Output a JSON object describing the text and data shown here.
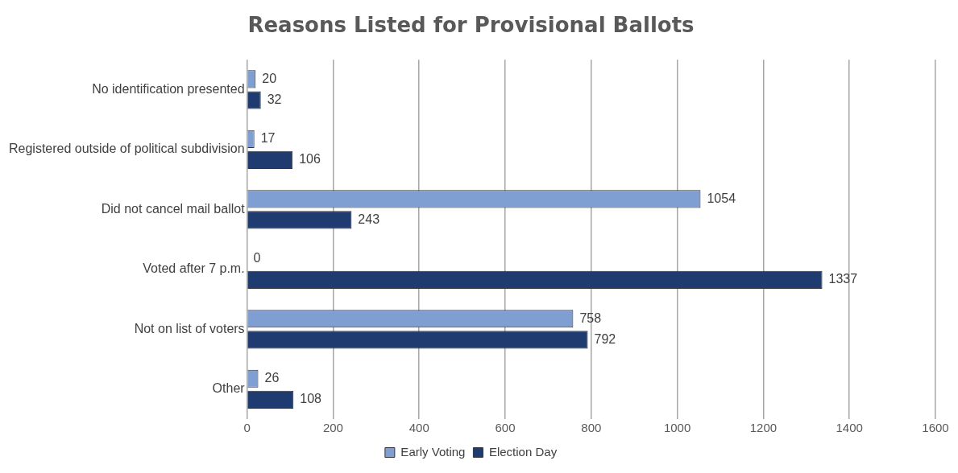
{
  "chart_data": {
    "type": "bar",
    "orientation": "horizontal",
    "title": "Reasons Listed for Provisional Ballots",
    "categories": [
      "No identification presented",
      "Registered outside of political subdivision",
      "Did not cancel mail ballot",
      "Voted after 7 p.m.",
      "Not on list of voters",
      "Other"
    ],
    "series": [
      {
        "name": "Early Voting",
        "color": "#7f9fd3",
        "values": [
          20,
          17,
          1054,
          0,
          758,
          26
        ]
      },
      {
        "name": "Election Day",
        "color": "#1f3b70",
        "values": [
          32,
          106,
          243,
          1337,
          792,
          108
        ]
      }
    ],
    "xlim": [
      0,
      1600
    ],
    "xticks": [
      0,
      200,
      400,
      600,
      800,
      1000,
      1200,
      1400,
      1600
    ],
    "grid": "x",
    "legend": "bottom",
    "data_labels": true
  }
}
